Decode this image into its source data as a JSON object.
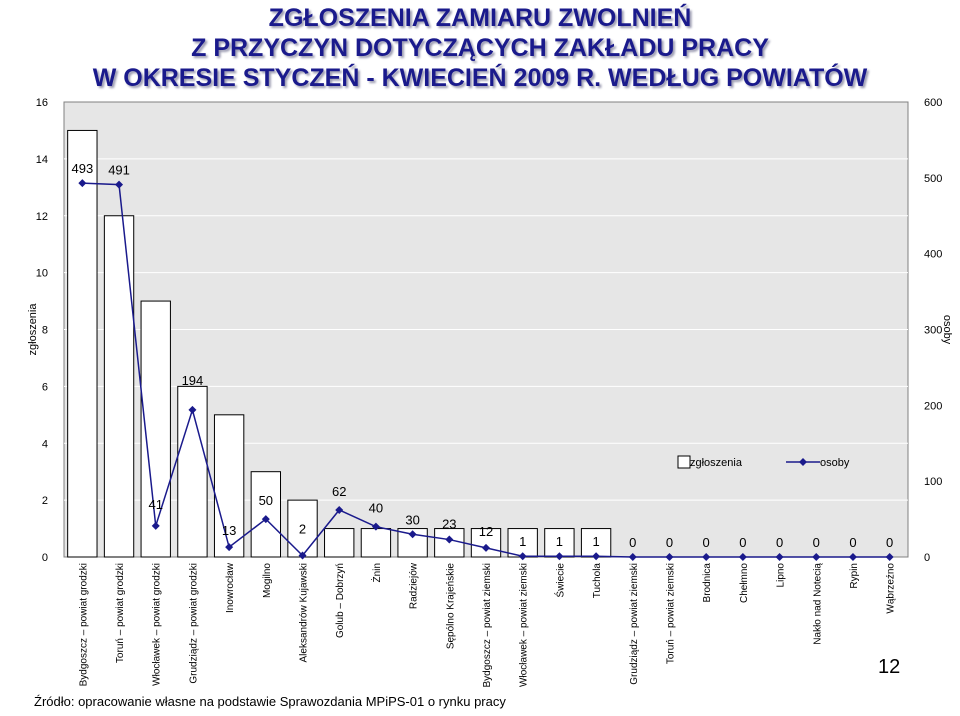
{
  "title_lines": [
    "ZGŁOSZENIA ZAMIARU ZWOLNIEŃ",
    "Z PRZYCZYN DOTYCZĄCYCH ZAKŁADU PRACY",
    "W OKRESIE STYCZEŃ - KWIECIEŃ 2009 R. WEDŁUG POWIATÓW"
  ],
  "footer": "Źródło: opracowanie własne na podstawie Sprawozdania MPiPS-01 o rynku pracy",
  "page_number": "12",
  "colors": {
    "bar_fill": "#ffffff",
    "bar_stroke": "#000000",
    "plot_bg": "#e6e6e6",
    "line": "#1a1a8c",
    "title": "#1a1a8c"
  },
  "chart_data": {
    "type": "bar",
    "categories": [
      "Bydgoszcz – powiat grodzki",
      "Toruń – powiat grodzki",
      "Włocławek – powiat grodzki",
      "Grudziądz – powiat grodzki",
      "Inowrocław",
      "Mogilno",
      "Aleksandrów Kujawski",
      "Golub – Dobrzyń",
      "Żnin",
      "Radziejów",
      "Sępólno Krajeńskie",
      "Bydgoszcz – powiat ziemski",
      "Włocławek – powiat ziemski",
      "Świecie",
      "Tuchola",
      "Grudziądz – powiat ziemski",
      "Toruń – powiat ziemski",
      "Brodnica",
      "Chełmno",
      "Lipno",
      "Nakło nad Notecią",
      "Rypin",
      "Wąbrzeźno"
    ],
    "series": [
      {
        "name": "zgłoszenia",
        "axis": "left",
        "type": "bar",
        "values": [
          15,
          12,
          9,
          6,
          5,
          3,
          2,
          1,
          1,
          1,
          1,
          1,
          1,
          1,
          1,
          0,
          0,
          0,
          0,
          0,
          0,
          0,
          0
        ]
      },
      {
        "name": "osoby",
        "axis": "right",
        "type": "line",
        "values": [
          493,
          491,
          41,
          194,
          13,
          50,
          2,
          62,
          40,
          30,
          23,
          12,
          1,
          1,
          1,
          0,
          0,
          0,
          0,
          0,
          0,
          0,
          0
        ]
      }
    ],
    "ylabel": "zgłoszenia",
    "y2label": "osoby",
    "ylim": [
      0,
      16
    ],
    "y2lim": [
      0,
      600
    ],
    "yticks": [
      "0",
      "2",
      "4",
      "6",
      "8",
      "10",
      "12",
      "14",
      "16"
    ],
    "y2ticks": [
      "0",
      "100",
      "200",
      "300",
      "400",
      "500",
      "600"
    ],
    "legend": "top-right inside plot",
    "grid": true
  }
}
